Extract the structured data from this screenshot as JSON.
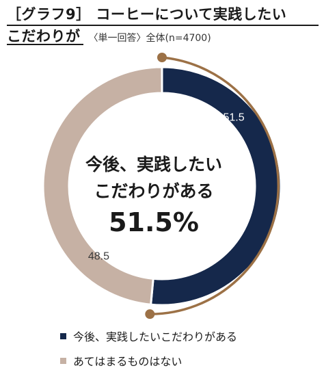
{
  "header": {
    "title_line1": "［グラフ9］ コーヒーについて実践したい",
    "title_line2": "こだわりが",
    "subtitle": "〈単一回答〉全体(n=4700)"
  },
  "center": {
    "line1": "今後、実践したい",
    "line2": "こだわりがある",
    "value": "51.5%"
  },
  "chart_data": {
    "type": "pie",
    "style": "donut",
    "categories": [
      "今後、実践したいこだわりがある",
      "あてはまるものはない"
    ],
    "values": [
      51.5,
      48.5
    ],
    "value_labels": [
      "51.5",
      "48.5"
    ],
    "colors": [
      "#15284b",
      "#c6b1a4"
    ],
    "highlight_color": "#9c7146",
    "legend_position": "bottom-left"
  }
}
